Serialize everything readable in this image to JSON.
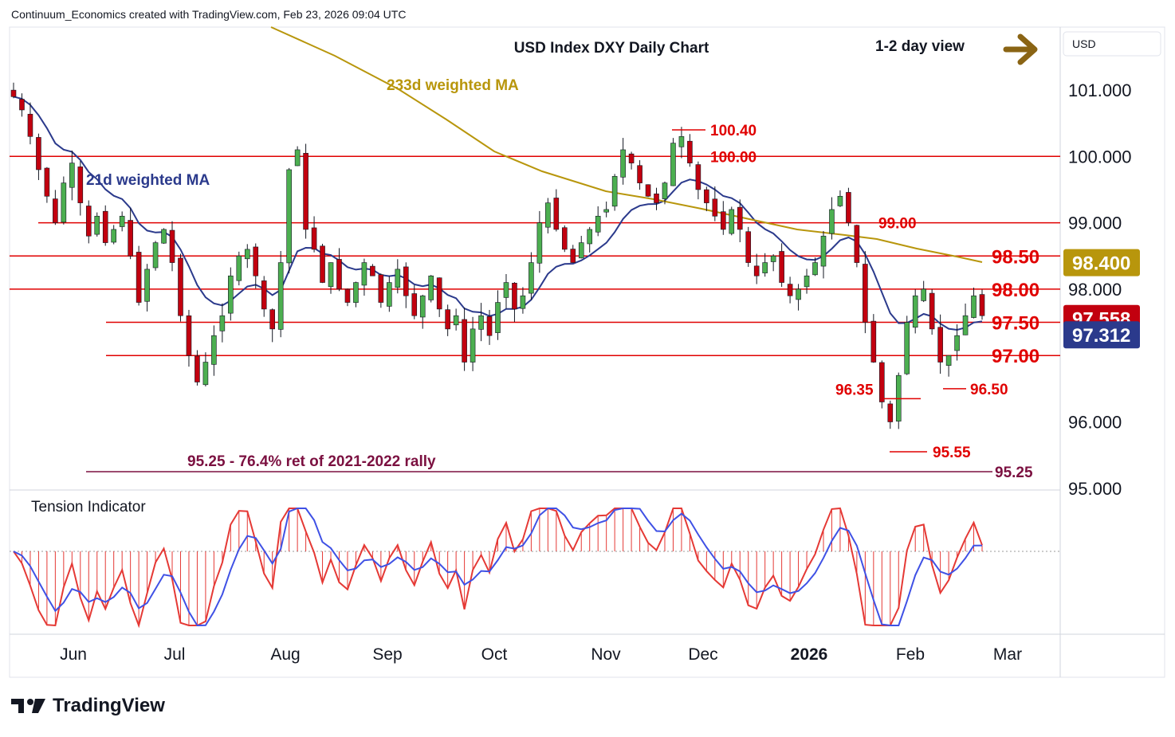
{
  "header": {
    "credit": "Continuum_Economics created with TradingView.com, Feb 23, 2026 09:04 UTC"
  },
  "footer": {
    "brand": "TradingView"
  },
  "chart_data": {
    "type": "candlestick",
    "title": "USD Index DXY Daily Chart",
    "view_label": "1-2 day view",
    "view_direction": "right",
    "currency": "USD",
    "x_ticks": [
      "Jun",
      "Jul",
      "Aug",
      "Sep",
      "Oct",
      "Nov",
      "Dec",
      "2026",
      "Feb",
      "Mar"
    ],
    "y_ticks": [
      "101.000",
      "100.000",
      "99.000",
      "98.000",
      "96.000",
      "95.000"
    ],
    "ylim": [
      95,
      101.9
    ],
    "colors": {
      "up": "#4caf50",
      "down": "#c2000f",
      "level": "#e00000",
      "ma21": "#2b3a8c",
      "ma233": "#b8960c",
      "retrace": "#7b1040",
      "tension_up": "#e53935",
      "tension_down": "#3f51e5"
    },
    "levels": [
      {
        "value": 100.0,
        "label": "100.00",
        "label_side": "inside"
      },
      {
        "value": 99.0,
        "label": "99.00",
        "label_side": "inside"
      },
      {
        "value": 98.5,
        "label": "98.50",
        "label_side": "right"
      },
      {
        "value": 98.0,
        "label": "98.00",
        "label_side": "right"
      },
      {
        "value": 97.5,
        "label": "97.50",
        "label_side": "right"
      },
      {
        "value": 97.0,
        "label": "97.00",
        "label_side": "right"
      }
    ],
    "annotations": [
      {
        "value": 100.4,
        "label": "100.40"
      },
      {
        "value": 96.35,
        "label": "96.35"
      },
      {
        "value": 96.5,
        "label": "96.50"
      },
      {
        "value": 95.55,
        "label": "95.55"
      }
    ],
    "retracement": {
      "value": 95.25,
      "label": "95.25 - 76.4% ret of 2021-2022 rally",
      "axis_label": "95.25"
    },
    "ma_labels": {
      "ma233": "233d weighted MA",
      "ma21": "21d weighted MA"
    },
    "price_badges": [
      {
        "value": 98.4,
        "label": "98.400",
        "color": "#b8960c"
      },
      {
        "value": 97.558,
        "label": "97.558",
        "color": "#c2000f"
      },
      {
        "value": 97.312,
        "label": "97.312",
        "color": "#2b3a8c"
      }
    ],
    "close_path": [
      100.9,
      100.7,
      100.3,
      99.8,
      99.4,
      99.0,
      99.6,
      99.9,
      99.3,
      98.8,
      99.1,
      98.7,
      98.9,
      99.1,
      98.5,
      97.8,
      98.3,
      98.7,
      98.9,
      98.4,
      97.6,
      97.0,
      96.6,
      96.9,
      97.3,
      97.6,
      98.2,
      98.5,
      98.6,
      98.2,
      97.7,
      97.4,
      98.4,
      99.8,
      100.1,
      98.9,
      98.6,
      98.1,
      98.4,
      98.0,
      97.8,
      98.1,
      98.4,
      98.2,
      97.8,
      98.1,
      98.3,
      97.9,
      97.6,
      97.9,
      98.2,
      97.7,
      97.4,
      97.6,
      96.9,
      97.4,
      97.6,
      97.3,
      97.8,
      98.1,
      97.7,
      97.9,
      98.4,
      99.0,
      99.3,
      98.9,
      98.6,
      98.4,
      98.7,
      98.9,
      99.1,
      99.2,
      99.7,
      100.1,
      99.9,
      99.6,
      99.4,
      99.3,
      99.6,
      100.2,
      100.3,
      99.9,
      99.5,
      99.3,
      99.1,
      98.9,
      99.2,
      98.9,
      98.4,
      98.2,
      98.4,
      98.5,
      98.1,
      97.9,
      98.0,
      98.2,
      98.4,
      98.8,
      99.2,
      99.4,
      99.0,
      98.4,
      97.5,
      96.9,
      96.3,
      96.0,
      96.7,
      97.5,
      97.9,
      98.0,
      97.4,
      96.9,
      97.0,
      97.3,
      97.6,
      97.9,
      97.6
    ],
    "tension_indicator": {
      "title": "Tension Indicator"
    }
  }
}
